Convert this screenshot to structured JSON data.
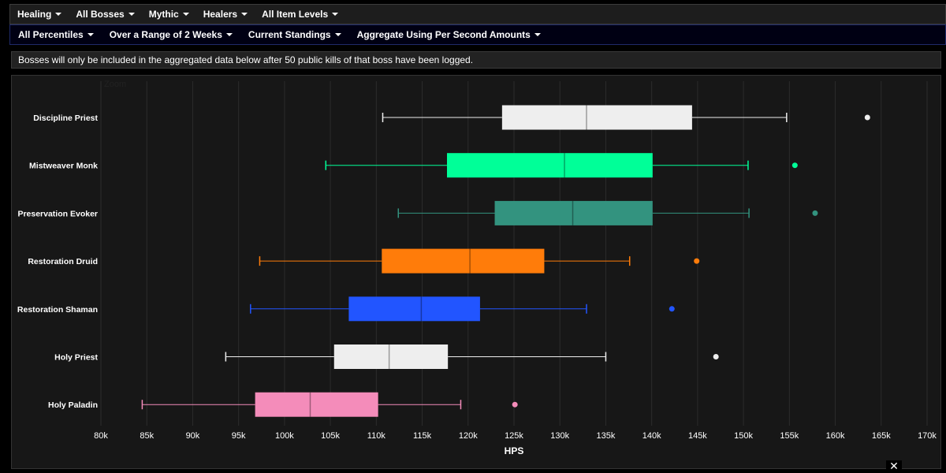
{
  "nav": {
    "items": [
      {
        "label": "Healing"
      },
      {
        "label": "All Bosses"
      },
      {
        "label": "Mythic"
      },
      {
        "label": "Healers"
      },
      {
        "label": "All Item Levels"
      }
    ]
  },
  "subnav": {
    "items": [
      {
        "label": "All Percentiles"
      },
      {
        "label": "Over a Range of 2 Weeks"
      },
      {
        "label": "Current Standings"
      },
      {
        "label": "Aggregate Using Per Second Amounts"
      }
    ]
  },
  "notice": "Bosses will only be included in the aggregated data below after 50 public kills of that boss have been logged.",
  "zoom_label": "Zoom",
  "close_symbol": "✕",
  "chart_data": {
    "type": "boxplot",
    "orientation": "horizontal",
    "xlabel": "HPS",
    "xlim": [
      80000,
      170000
    ],
    "xticks": [
      80000,
      85000,
      90000,
      95000,
      100000,
      105000,
      110000,
      115000,
      120000,
      125000,
      130000,
      135000,
      140000,
      145000,
      150000,
      155000,
      160000,
      165000,
      170000
    ],
    "xtick_labels": [
      "80k",
      "85k",
      "90k",
      "95k",
      "100k",
      "105k",
      "110k",
      "115k",
      "120k",
      "125k",
      "130k",
      "135k",
      "140k",
      "145k",
      "150k",
      "155k",
      "160k",
      "165k",
      "170k"
    ],
    "grid": true,
    "series": [
      {
        "name": "Discipline Priest",
        "color": "#eeeeee",
        "min": 110700,
        "q1": 123700,
        "median": 132900,
        "q3": 144400,
        "max": 154700,
        "outlier": 163500
      },
      {
        "name": "Mistweaver Monk",
        "color": "#00ff98",
        "min": 104500,
        "q1": 117700,
        "median": 130500,
        "q3": 140100,
        "max": 150500,
        "outlier": 155600
      },
      {
        "name": "Preservation Evoker",
        "color": "#33937f",
        "min": 112400,
        "q1": 122900,
        "median": 131400,
        "q3": 140100,
        "max": 150600,
        "outlier": 157800
      },
      {
        "name": "Restoration Druid",
        "color": "#ff7c0a",
        "min": 97300,
        "q1": 110600,
        "median": 120200,
        "q3": 128300,
        "max": 137600,
        "outlier": 144900
      },
      {
        "name": "Restoration Shaman",
        "color": "#2255ff",
        "min": 96300,
        "q1": 107000,
        "median": 114900,
        "q3": 121300,
        "max": 132900,
        "outlier": 142200
      },
      {
        "name": "Holy Priest",
        "color": "#eeeeee",
        "min": 93600,
        "q1": 105400,
        "median": 111400,
        "q3": 117800,
        "max": 135000,
        "outlier": 147000
      },
      {
        "name": "Holy Paladin",
        "color": "#f48cba",
        "min": 84500,
        "q1": 96800,
        "median": 102800,
        "q3": 110200,
        "max": 119200,
        "outlier": 125100
      }
    ]
  }
}
